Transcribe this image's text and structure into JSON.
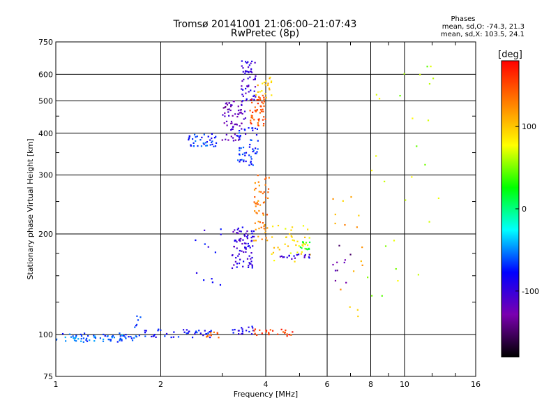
{
  "header": {
    "title_line1": "Tromsø 20141001 21:06:00–21:07:43",
    "title_line2": "RwPretec (8p)"
  },
  "phases_box": {
    "heading": "Phases",
    "line_o": "mean, sd,O: -74.3, 21.3",
    "line_x": "mean, sd,X: 103.5, 24.1"
  },
  "chart_data": {
    "type": "scatter",
    "title": "Tromsø 20141001 21:06:00–21:07:43",
    "subtitle": "RwPretec (8p)",
    "xlabel": "Frequency [MHz]",
    "ylabel": "Stationary phase Virtual Height [km]",
    "x_scale": "log",
    "y_scale": "log",
    "xlim": [
      1,
      16
    ],
    "ylim": [
      75,
      750
    ],
    "x_ticks": [
      1,
      2,
      4,
      6,
      8,
      10,
      16
    ],
    "y_ticks": [
      75,
      100,
      200,
      300,
      400,
      500,
      600,
      750
    ],
    "grid": true,
    "colorbar": {
      "label": "[deg]",
      "range": [
        -180,
        180
      ],
      "ticks": [
        -100,
        0,
        100
      ],
      "colormap": [
        "#000000",
        "#7a00b0",
        "#0000ff",
        "#00ffff",
        "#00ff00",
        "#ffff00",
        "#ff8000",
        "#ff0000"
      ]
    },
    "clusters": [
      {
        "x": [
          1.0,
          1.7
        ],
        "y": [
          95,
          101
        ],
        "phase": -60,
        "n": 70
      },
      {
        "x": [
          1.7,
          2.8
        ],
        "y": [
          98,
          104
        ],
        "phase": -80,
        "n": 45
      },
      {
        "x": [
          1.68,
          1.75
        ],
        "y": [
          105,
          115
        ],
        "phase": -70,
        "n": 6
      },
      {
        "x": [
          2.7,
          3.0
        ],
        "y": [
          98,
          102
        ],
        "phase": 150,
        "n": 10
      },
      {
        "x": [
          3.2,
          3.7
        ],
        "y": [
          100,
          106
        ],
        "phase": -90,
        "n": 18
      },
      {
        "x": [
          3.7,
          4.8
        ],
        "y": [
          99,
          104
        ],
        "phase": 160,
        "n": 25
      },
      {
        "x": [
          3.2,
          3.7
        ],
        "y": [
          158,
          210
        ],
        "phase": -100,
        "n": 80
      },
      {
        "x": [
          3.7,
          4.1
        ],
        "y": [
          190,
          300
        ],
        "phase": 130,
        "n": 55
      },
      {
        "x": [
          4.1,
          5.4
        ],
        "y": [
          165,
          215
        ],
        "phase": 90,
        "n": 40
      },
      {
        "x": [
          4.4,
          5.4
        ],
        "y": [
          168,
          174
        ],
        "phase": -100,
        "n": 20
      },
      {
        "x": [
          5.0,
          5.4
        ],
        "y": [
          175,
          190
        ],
        "phase": 30,
        "n": 12
      },
      {
        "x": [
          2.4,
          2.9
        ],
        "y": [
          365,
          400
        ],
        "phase": -70,
        "n": 40
      },
      {
        "x": [
          3.0,
          3.5
        ],
        "y": [
          380,
          500
        ],
        "phase": -120,
        "n": 70
      },
      {
        "x": [
          3.3,
          3.8
        ],
        "y": [
          320,
          420
        ],
        "phase": -70,
        "n": 55
      },
      {
        "x": [
          3.4,
          3.75
        ],
        "y": [
          500,
          660
        ],
        "phase": -100,
        "n": 55
      },
      {
        "x": [
          3.6,
          4.0
        ],
        "y": [
          420,
          520
        ],
        "phase": 150,
        "n": 50
      },
      {
        "x": [
          3.75,
          4.2
        ],
        "y": [
          510,
          600
        ],
        "phase": 100,
        "n": 20
      },
      {
        "x": [
          6.2,
          7.8
        ],
        "y": [
          110,
          260
        ],
        "phase": 110,
        "n": 16
      },
      {
        "x": [
          6.2,
          7.0
        ],
        "y": [
          140,
          210
        ],
        "phase": -130,
        "n": 10
      },
      {
        "x": [
          7.8,
          13.5
        ],
        "y": [
          130,
          650
        ],
        "phase": 60,
        "n": 28
      },
      {
        "x": [
          2.5,
          3.0
        ],
        "y": [
          140,
          215
        ],
        "phase": -90,
        "n": 12
      }
    ]
  }
}
